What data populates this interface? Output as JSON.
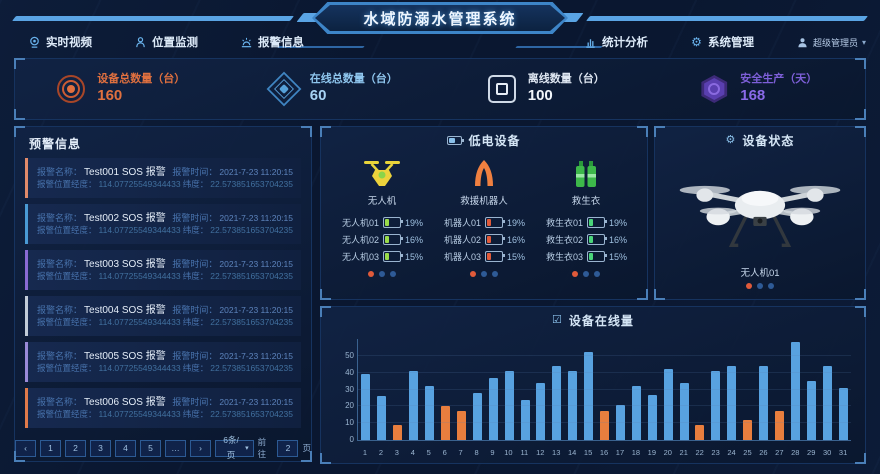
{
  "header": {
    "title": "水域防溺水管理系统",
    "nav_left": [
      {
        "icon": "video-icon",
        "label": "实时视频"
      },
      {
        "icon": "location-icon",
        "label": "位置监测"
      },
      {
        "icon": "alarm-icon",
        "label": "报警信息"
      }
    ],
    "nav_right": [
      {
        "icon": "chart-icon",
        "label": "统计分析"
      },
      {
        "icon": "gear-icon",
        "label": "系统管理"
      }
    ],
    "user": {
      "label": "超级管理员",
      "caret": "▾"
    }
  },
  "stats": [
    {
      "label": "设备总数量（台）",
      "value": "160",
      "color": "#e0703f"
    },
    {
      "label": "在线总数量（台）",
      "value": "60",
      "color": "#8fc6ee"
    },
    {
      "label": "离线数量（台）",
      "value": "100",
      "color": "#eef3fa"
    },
    {
      "label": "安全生产（天）",
      "value": "168",
      "color": "#7d5fd8"
    }
  ],
  "alerts": {
    "title": "预警信息",
    "labels": {
      "name": "报警名称：",
      "time": "报警时间：",
      "lng": "报警位置经度：",
      "lat": "纬度："
    },
    "items": [
      {
        "name": "Test001 SOS 报警",
        "time": "2021-7-23 11:20:15",
        "lng": "114.07725549344433",
        "lat": "22.573851653704235",
        "accent": "#e08a6a"
      },
      {
        "name": "Test002 SOS 报警",
        "time": "2021-7-23 11:20:15",
        "lng": "114.07725549344433",
        "lat": "22.573851653704235",
        "accent": "#4a9ad4"
      },
      {
        "name": "Test003 SOS 报警",
        "time": "2021-7-23 11:20:15",
        "lng": "114.07725549344433",
        "lat": "22.573851653704235",
        "accent": "#8a6ad4"
      },
      {
        "name": "Test004 SOS 报警",
        "time": "2021-7-23 11:20:15",
        "lng": "114.07725549344433",
        "lat": "22.573851653704235",
        "accent": "#c2ccd8"
      },
      {
        "name": "Test005 SOS 报警",
        "time": "2021-7-23 11:20:15",
        "lng": "114.07725549344433",
        "lat": "22.573851653704235",
        "accent": "#9a8ad8"
      },
      {
        "name": "Test006 SOS 报警",
        "time": "2021-7-23 11:20:15",
        "lng": "114.07725549344433",
        "lat": "22.573851653704235",
        "accent": "#e07a4a"
      }
    ],
    "pagination": {
      "prev": "‹",
      "pages": [
        "1",
        "2",
        "3",
        "4",
        "5",
        "…"
      ],
      "next": "›",
      "page_size": "6条/页",
      "caret": "▾",
      "goto_prefix": "前往",
      "goto_value": "2",
      "goto_suffix": "页"
    }
  },
  "low_battery": {
    "title": "低电设备",
    "groups": [
      {
        "icon": "drone-icon",
        "label": "无人机",
        "battery_color": "#9adb4a",
        "items": [
          {
            "name": "无人机01",
            "pct": "19%"
          },
          {
            "name": "无人机02",
            "pct": "16%"
          },
          {
            "name": "无人机03",
            "pct": "15%"
          }
        ]
      },
      {
        "icon": "robot-icon",
        "label": "救援机器人",
        "battery_color": "#e05a3a",
        "items": [
          {
            "name": "机器人01",
            "pct": "19%"
          },
          {
            "name": "机器人02",
            "pct": "16%"
          },
          {
            "name": "机器人03",
            "pct": "15%"
          }
        ]
      },
      {
        "icon": "vest-icon",
        "label": "救生衣",
        "battery_color": "#4ad47a",
        "items": [
          {
            "name": "救生衣01",
            "pct": "19%"
          },
          {
            "name": "救生衣02",
            "pct": "16%"
          },
          {
            "name": "救生衣03",
            "pct": "15%"
          }
        ]
      }
    ]
  },
  "device_status": {
    "title": "设备状态",
    "device_label": "无人机01"
  },
  "chart_data": {
    "type": "bar",
    "title": "设备在线量",
    "categories": [
      "1",
      "2",
      "3",
      "4",
      "5",
      "6",
      "7",
      "8",
      "9",
      "10",
      "11",
      "12",
      "13",
      "14",
      "15",
      "16",
      "17",
      "18",
      "19",
      "20",
      "21",
      "22",
      "23",
      "24",
      "25",
      "26",
      "27",
      "28",
      "29",
      "30",
      "31"
    ],
    "values": [
      39,
      26,
      9,
      41,
      32,
      20,
      17,
      28,
      37,
      41,
      24,
      34,
      44,
      41,
      52,
      17,
      21,
      32,
      27,
      42,
      34,
      9,
      41,
      44,
      12,
      44,
      17,
      58,
      35,
      44,
      31
    ],
    "highlight_days": [
      3,
      6,
      7,
      16,
      22,
      25,
      27
    ],
    "colors": {
      "default": "#58a2e0",
      "highlight": "#e87e3e"
    },
    "xlabel": "",
    "ylabel": "",
    "ylim": [
      0,
      60
    ],
    "yticks": [
      0,
      10,
      20,
      30,
      40,
      50
    ],
    "grid": true,
    "legend": "none"
  }
}
